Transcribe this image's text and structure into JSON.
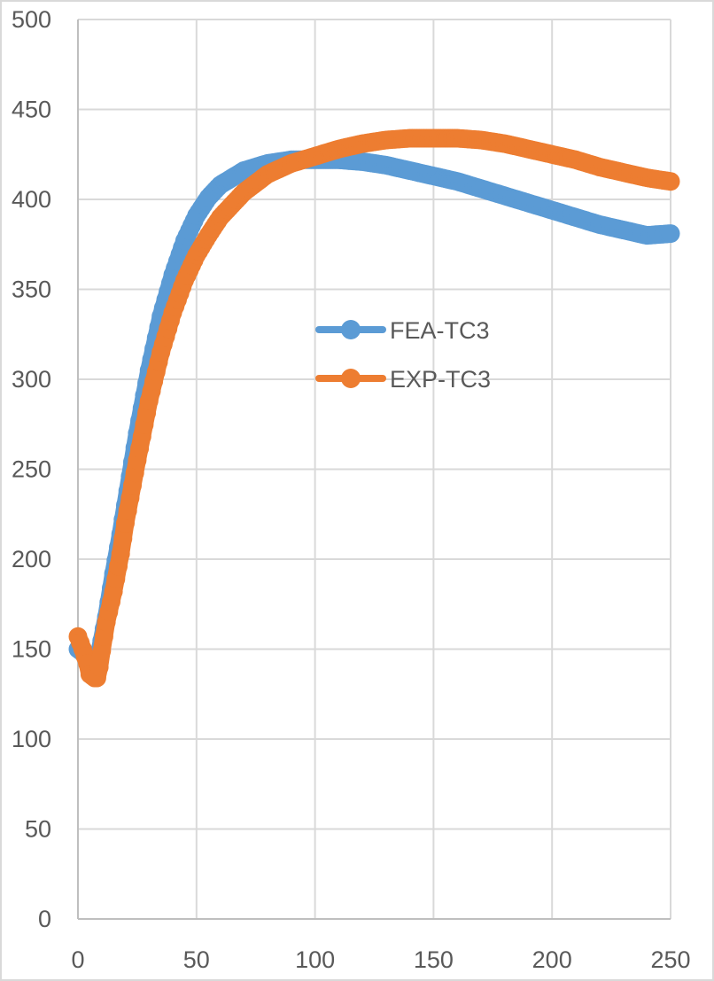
{
  "chart_data": {
    "type": "line",
    "title": "",
    "xlabel": "",
    "ylabel": "",
    "xlim": [
      0,
      250
    ],
    "ylim": [
      0,
      500
    ],
    "x_ticks": [
      0,
      50,
      100,
      150,
      200,
      250
    ],
    "y_ticks": [
      0,
      50,
      100,
      150,
      200,
      250,
      300,
      350,
      400,
      450,
      500
    ],
    "grid": true,
    "legend_position": "inside-center",
    "series": [
      {
        "name": "FEA-TC3",
        "color": "#5B9BD5",
        "x": [
          0,
          3,
          5,
          7,
          9,
          12,
          15,
          18,
          20,
          25,
          30,
          35,
          40,
          45,
          50,
          55,
          60,
          70,
          80,
          90,
          100,
          110,
          120,
          130,
          140,
          150,
          160,
          170,
          180,
          190,
          200,
          210,
          220,
          230,
          240,
          250
        ],
        "values": [
          150,
          147,
          143,
          141,
          148,
          168,
          192,
          214,
          230,
          270,
          305,
          335,
          358,
          377,
          391,
          401,
          408,
          416,
          420,
          422,
          422,
          422,
          421,
          419,
          416,
          413,
          410,
          406,
          402,
          398,
          394,
          390,
          386,
          383,
          380,
          381
        ]
      },
      {
        "name": "EXP-TC3",
        "color": "#ED7D31",
        "x": [
          0,
          2,
          4,
          5,
          7,
          8,
          9,
          10,
          12,
          15,
          18,
          20,
          25,
          30,
          35,
          40,
          45,
          50,
          55,
          60,
          70,
          80,
          90,
          100,
          110,
          120,
          130,
          140,
          150,
          160,
          170,
          180,
          190,
          200,
          210,
          220,
          230,
          240,
          250
        ],
        "values": [
          157,
          150,
          142,
          136,
          134,
          134,
          140,
          149,
          165,
          182,
          203,
          220,
          255,
          288,
          315,
          337,
          355,
          369,
          380,
          390,
          404,
          414,
          420,
          424,
          428,
          431,
          433,
          434,
          434,
          434,
          433,
          431,
          428,
          425,
          422,
          418,
          415,
          412,
          410
        ]
      }
    ]
  },
  "legend": {
    "items": [
      {
        "label": "FEA-TC3",
        "color": "#5B9BD5"
      },
      {
        "label": "EXP-TC3",
        "color": "#ED7D31"
      }
    ]
  },
  "axes": {
    "x_labels": [
      "0",
      "50",
      "100",
      "150",
      "200",
      "250"
    ],
    "y_labels": [
      "0",
      "50",
      "100",
      "150",
      "200",
      "250",
      "300",
      "350",
      "400",
      "450",
      "500"
    ]
  }
}
